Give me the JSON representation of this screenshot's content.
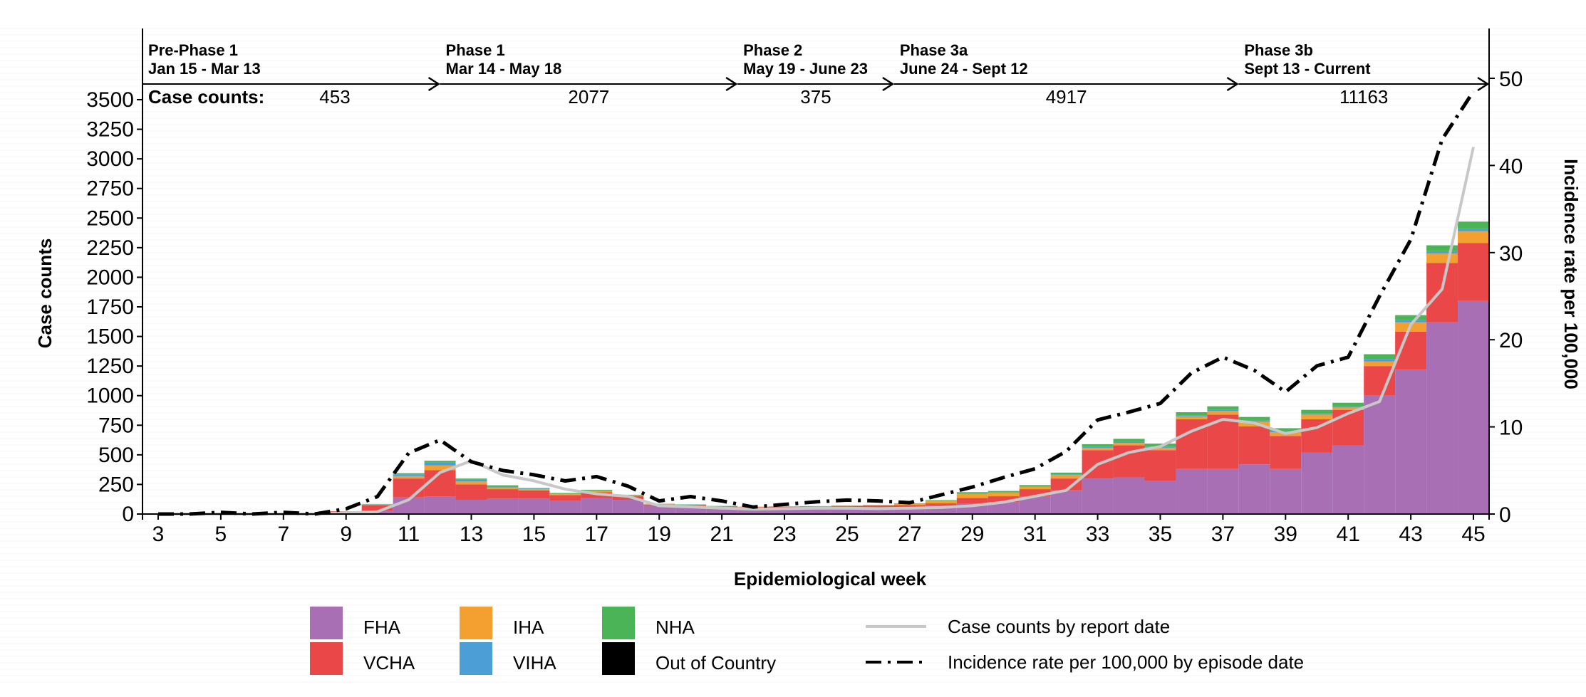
{
  "chart_data": {
    "type": "bar",
    "stacked": true,
    "xlabel": "Epidemiological week",
    "ylabel": "Case counts",
    "y2label": "Incidence rate per 100,000",
    "ylim": [
      0,
      3500
    ],
    "y2lim": [
      0,
      50
    ],
    "yticks": [
      0,
      250,
      500,
      750,
      1000,
      1250,
      1500,
      1750,
      2000,
      2250,
      2500,
      2750,
      3000,
      3250,
      3500
    ],
    "y2ticks": [
      0,
      10,
      20,
      30,
      40,
      50
    ],
    "xticks": [
      3,
      5,
      7,
      9,
      11,
      13,
      15,
      17,
      19,
      21,
      23,
      25,
      27,
      29,
      31,
      33,
      35,
      37,
      39,
      41,
      43,
      45
    ],
    "weeks": [
      3,
      4,
      5,
      6,
      7,
      8,
      9,
      10,
      11,
      12,
      13,
      14,
      15,
      16,
      17,
      18,
      19,
      20,
      21,
      22,
      23,
      24,
      25,
      26,
      27,
      28,
      29,
      30,
      31,
      32,
      33,
      34,
      35,
      36,
      37,
      38,
      39,
      40,
      41,
      42,
      43,
      44,
      45
    ],
    "series": [
      {
        "name": "FHA",
        "color": "#a86fb5",
        "values": [
          0,
          0,
          0,
          0,
          0,
          0,
          8,
          30,
          140,
          150,
          120,
          130,
          130,
          110,
          135,
          120,
          70,
          60,
          55,
          50,
          50,
          55,
          60,
          60,
          60,
          70,
          90,
          100,
          150,
          200,
          300,
          310,
          280,
          380,
          380,
          420,
          380,
          520,
          580,
          1000,
          1220,
          1620,
          1800
        ]
      },
      {
        "name": "VCHA",
        "color": "#ea4848",
        "values": [
          0,
          0,
          0,
          0,
          0,
          0,
          15,
          45,
          160,
          220,
          130,
          80,
          70,
          50,
          50,
          30,
          10,
          15,
          10,
          8,
          10,
          8,
          8,
          10,
          15,
          20,
          45,
          50,
          60,
          100,
          240,
          270,
          260,
          420,
          460,
          320,
          280,
          280,
          300,
          250,
          320,
          500,
          490
        ]
      },
      {
        "name": "IHA",
        "color": "#f3a030",
        "values": [
          0,
          0,
          0,
          0,
          0,
          0,
          0,
          5,
          20,
          40,
          25,
          15,
          10,
          8,
          10,
          5,
          3,
          3,
          2,
          2,
          2,
          2,
          3,
          5,
          10,
          20,
          35,
          30,
          20,
          30,
          20,
          20,
          20,
          25,
          30,
          40,
          30,
          40,
          20,
          40,
          80,
          80,
          100
        ]
      },
      {
        "name": "VIHA",
        "color": "#4c9fd6",
        "values": [
          0,
          0,
          0,
          0,
          0,
          0,
          0,
          3,
          15,
          25,
          15,
          10,
          5,
          5,
          5,
          3,
          2,
          2,
          1,
          1,
          1,
          1,
          1,
          1,
          2,
          3,
          5,
          5,
          5,
          5,
          10,
          10,
          10,
          10,
          10,
          10,
          10,
          10,
          10,
          20,
          20,
          20,
          20
        ]
      },
      {
        "name": "NHA",
        "color": "#4bb457",
        "values": [
          0,
          0,
          0,
          0,
          0,
          0,
          0,
          2,
          10,
          15,
          10,
          8,
          5,
          5,
          5,
          5,
          2,
          2,
          1,
          1,
          2,
          1,
          1,
          2,
          3,
          5,
          10,
          10,
          10,
          15,
          20,
          25,
          25,
          25,
          30,
          30,
          25,
          30,
          30,
          40,
          40,
          50,
          60
        ]
      },
      {
        "name": "Out of Country",
        "color": "#000000",
        "values": [
          0,
          0,
          0,
          0,
          0,
          0,
          0,
          0,
          0,
          0,
          0,
          0,
          0,
          0,
          0,
          0,
          0,
          0,
          0,
          0,
          0,
          0,
          0,
          0,
          0,
          0,
          0,
          0,
          0,
          0,
          0,
          0,
          0,
          0,
          0,
          0,
          0,
          0,
          0,
          0,
          0,
          0,
          0
        ]
      }
    ],
    "lines": [
      {
        "name": "Case counts by report date",
        "axis": "left",
        "style": "solid",
        "color": "#c8c8c8",
        "values": [
          0,
          0,
          0,
          0,
          0,
          0,
          10,
          20,
          120,
          350,
          450,
          330,
          280,
          210,
          170,
          150,
          70,
          60,
          50,
          40,
          45,
          50,
          50,
          45,
          50,
          55,
          70,
          100,
          150,
          200,
          420,
          520,
          570,
          700,
          800,
          770,
          680,
          730,
          850,
          950,
          1600,
          1900,
          3100
        ]
      },
      {
        "name": "Incidence rate per 100,000 by episode date",
        "axis": "right",
        "style": "dashdot",
        "color": "#000000",
        "values": [
          0,
          0,
          0.2,
          0,
          0.2,
          0,
          0.6,
          2,
          7,
          8.5,
          6,
          5,
          4.5,
          3.8,
          4.3,
          3.2,
          1.5,
          2,
          1.5,
          0.8,
          1.1,
          1.4,
          1.6,
          1.5,
          1.3,
          2.2,
          3.1,
          4.2,
          5.2,
          7.2,
          10.8,
          11.7,
          12.7,
          16.2,
          18,
          16.5,
          14,
          17,
          18,
          25,
          31.5,
          43,
          48.5
        ]
      }
    ],
    "legend": {
      "placement": "bottom",
      "items": [
        {
          "label": "FHA",
          "color": "#a86fb5",
          "kind": "swatch"
        },
        {
          "label": "VCHA",
          "color": "#ea4848",
          "kind": "swatch"
        },
        {
          "label": "IHA",
          "color": "#f3a030",
          "kind": "swatch"
        },
        {
          "label": "VIHA",
          "color": "#4c9fd6",
          "kind": "swatch"
        },
        {
          "label": "NHA",
          "color": "#4bb457",
          "kind": "swatch"
        },
        {
          "label": "Out of Country",
          "color": "#000000",
          "kind": "swatch"
        },
        {
          "label": "Case counts by report date",
          "color": "#c8c8c8",
          "kind": "solid"
        },
        {
          "label": "Incidence rate per 100,000 by episode date",
          "color": "#000000",
          "kind": "dashdot"
        }
      ]
    },
    "phases": {
      "case_counts_label": "Case counts:",
      "items": [
        {
          "name": "Pre-Phase 1",
          "dates": "Jan 15 - Mar 13",
          "count": "453",
          "start_week": 2.5,
          "end_week": 12.0
        },
        {
          "name": "Phase 1",
          "dates": "Mar 14 - May 18",
          "count": "2077",
          "start_week": 12.0,
          "end_week": 21.5
        },
        {
          "name": "Phase 2",
          "dates": "May 19 - June 23",
          "count": "375",
          "start_week": 21.5,
          "end_week": 26.5
        },
        {
          "name": "Phase 3a",
          "dates": "June 24 - Sept 12",
          "count": "4917",
          "start_week": 26.5,
          "end_week": 37.5
        },
        {
          "name": "Phase 3b",
          "dates": "Sept 13 - Current",
          "count": "11163",
          "start_week": 37.5,
          "end_week": 45.5
        }
      ]
    }
  }
}
